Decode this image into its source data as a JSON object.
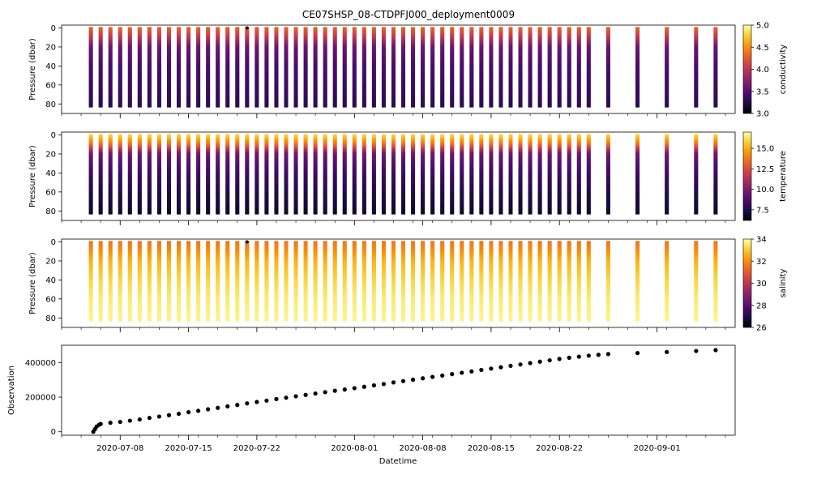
{
  "figure": {
    "title": "CE07SHSP_08-CTDPFJ000_deployment0009",
    "xlabel": "Datetime"
  },
  "colormap": [
    "#000004",
    "#1b0c41",
    "#4a0c6b",
    "#781c6d",
    "#a52c60",
    "#cf4446",
    "#ed6925",
    "#fb9b06",
    "#f7d13d",
    "#fcffa4"
  ],
  "chart_data": [
    {
      "type": "scatter",
      "panel": "conductivity",
      "ylabel": "Pressure (dbar)",
      "yticks": [
        0,
        20,
        40,
        60,
        80
      ],
      "ylim": [
        90,
        -3
      ],
      "x_axis": "date",
      "xlim": [
        "2020-07-02",
        "2020-09-09"
      ],
      "colorbar": {
        "label": "conductivity",
        "range": [
          3.0,
          5.0
        ],
        "ticks": [
          "3.0",
          "3.5",
          "4.0",
          "4.5",
          "5.0"
        ]
      },
      "description": "Vertical profiles at each deployment sample date; conductivity roughly 4.3 near surface, decreasing to ~3.3 at depth."
    },
    {
      "type": "scatter",
      "panel": "temperature",
      "ylabel": "Pressure (dbar)",
      "yticks": [
        0,
        20,
        40,
        60,
        80
      ],
      "ylim": [
        90,
        -3
      ],
      "x_axis": "date",
      "xlim": [
        "2020-07-02",
        "2020-09-09"
      ],
      "colorbar": {
        "label": "temperature",
        "range": [
          6.2,
          17.0
        ],
        "ticks": [
          "7.5",
          "10.0",
          "12.5",
          "15.0"
        ]
      },
      "description": "Warm (~15-16) surface layer in top ~10 dbar, cooling to ~7 at depth."
    },
    {
      "type": "scatter",
      "panel": "salinity",
      "ylabel": "Pressure (dbar)",
      "yticks": [
        0,
        20,
        40,
        60,
        80
      ],
      "ylim": [
        90,
        -3
      ],
      "x_axis": "date",
      "xlim": [
        "2020-07-02",
        "2020-09-09"
      ],
      "colorbar": {
        "label": "salinity",
        "range": [
          26,
          34
        ],
        "ticks": [
          "26",
          "28",
          "30",
          "32",
          "34"
        ]
      },
      "description": "Salinity ~31.5-32 near surface rising to ~33.8 at depth."
    },
    {
      "type": "scatter",
      "panel": "observation",
      "ylabel": "Observation",
      "yticks": [
        0,
        200000,
        400000
      ],
      "ytick_labels": [
        "0",
        "200000",
        "400000"
      ],
      "ylim": [
        -20000,
        500000
      ],
      "x_axis": "date",
      "xlim": [
        "2020-07-02",
        "2020-09-09"
      ],
      "xticks": [
        "2020-07-08",
        "2020-07-15",
        "2020-07-22",
        "2020-08-01",
        "2020-08-08",
        "2020-08-15",
        "2020-08-22",
        "2020-09-01"
      ],
      "points": [
        [
          "2020-07-05T06:00",
          0
        ],
        [
          "2020-07-05T10:00",
          15000
        ],
        [
          "2020-07-05T14:00",
          30000
        ],
        [
          "2020-07-05T20:00",
          40000
        ],
        [
          "2020-07-06",
          45000
        ],
        [
          "2020-07-07",
          52000
        ],
        [
          "2020-07-08",
          57000
        ],
        [
          "2020-07-09",
          64000
        ],
        [
          "2020-07-10",
          71000
        ],
        [
          "2020-07-11",
          80000
        ],
        [
          "2020-07-12",
          88000
        ],
        [
          "2020-07-13",
          96000
        ],
        [
          "2020-07-14",
          104000
        ],
        [
          "2020-07-15",
          113000
        ],
        [
          "2020-07-16",
          121000
        ],
        [
          "2020-07-17",
          130000
        ],
        [
          "2020-07-18",
          138000
        ],
        [
          "2020-07-19",
          147000
        ],
        [
          "2020-07-20",
          155000
        ],
        [
          "2020-07-21",
          164000
        ],
        [
          "2020-07-22",
          172000
        ],
        [
          "2020-07-23",
          180000
        ],
        [
          "2020-07-24",
          189000
        ],
        [
          "2020-07-25",
          197000
        ],
        [
          "2020-07-26",
          205000
        ],
        [
          "2020-07-27",
          213000
        ],
        [
          "2020-07-28",
          221000
        ],
        [
          "2020-07-29",
          229000
        ],
        [
          "2020-07-30",
          237000
        ],
        [
          "2020-07-31",
          244000
        ],
        [
          "2020-08-01",
          252000
        ],
        [
          "2020-08-02",
          260000
        ],
        [
          "2020-08-03",
          268000
        ],
        [
          "2020-08-04",
          276000
        ],
        [
          "2020-08-05",
          285000
        ],
        [
          "2020-08-06",
          293000
        ],
        [
          "2020-08-07",
          301000
        ],
        [
          "2020-08-08",
          309000
        ],
        [
          "2020-08-09",
          317000
        ],
        [
          "2020-08-10",
          325000
        ],
        [
          "2020-08-11",
          333000
        ],
        [
          "2020-08-12",
          341000
        ],
        [
          "2020-08-13",
          349000
        ],
        [
          "2020-08-14",
          357000
        ],
        [
          "2020-08-15",
          365000
        ],
        [
          "2020-08-16",
          373000
        ],
        [
          "2020-08-17",
          381000
        ],
        [
          "2020-08-18",
          389000
        ],
        [
          "2020-08-19",
          397000
        ],
        [
          "2020-08-20",
          405000
        ],
        [
          "2020-08-21",
          413000
        ],
        [
          "2020-08-22",
          421000
        ],
        [
          "2020-08-23",
          428000
        ],
        [
          "2020-08-24",
          434000
        ],
        [
          "2020-08-25",
          440000
        ],
        [
          "2020-08-26",
          445000
        ],
        [
          "2020-08-27",
          449000
        ],
        [
          "2020-08-30",
          455000
        ],
        [
          "2020-09-02",
          461000
        ],
        [
          "2020-09-05",
          467000
        ],
        [
          "2020-09-07",
          472000
        ]
      ]
    }
  ],
  "profile_dates": [
    "2020-07-05",
    "2020-07-06",
    "2020-07-07",
    "2020-07-08",
    "2020-07-09",
    "2020-07-10",
    "2020-07-11",
    "2020-07-12",
    "2020-07-13",
    "2020-07-14",
    "2020-07-15",
    "2020-07-16",
    "2020-07-17",
    "2020-07-18",
    "2020-07-19",
    "2020-07-20",
    "2020-07-21",
    "2020-07-22",
    "2020-07-23",
    "2020-07-24",
    "2020-07-25",
    "2020-07-26",
    "2020-07-27",
    "2020-07-28",
    "2020-07-29",
    "2020-07-30",
    "2020-07-31",
    "2020-08-01",
    "2020-08-02",
    "2020-08-03",
    "2020-08-04",
    "2020-08-05",
    "2020-08-06",
    "2020-08-07",
    "2020-08-08",
    "2020-08-09",
    "2020-08-10",
    "2020-08-11",
    "2020-08-12",
    "2020-08-13",
    "2020-08-14",
    "2020-08-15",
    "2020-08-16",
    "2020-08-17",
    "2020-08-18",
    "2020-08-19",
    "2020-08-20",
    "2020-08-21",
    "2020-08-22",
    "2020-08-23",
    "2020-08-24",
    "2020-08-25",
    "2020-08-27",
    "2020-08-30",
    "2020-09-02",
    "2020-09-05",
    "2020-09-07"
  ],
  "profile_depths": [
    0,
    10,
    20,
    40,
    60,
    83
  ],
  "profile_values": {
    "conductivity": [
      4.3,
      4.0,
      3.6,
      3.45,
      3.38,
      3.3
    ],
    "temperature": [
      16.0,
      13.5,
      9.5,
      8.3,
      7.6,
      7.0
    ],
    "salinity": [
      31.6,
      32.0,
      32.6,
      33.2,
      33.6,
      33.8
    ]
  },
  "outlier_points": [
    {
      "panel": "conductivity",
      "date": "2020-07-21",
      "pressure": 0
    },
    {
      "panel": "salinity",
      "date": "2020-07-21",
      "pressure": 0
    }
  ]
}
